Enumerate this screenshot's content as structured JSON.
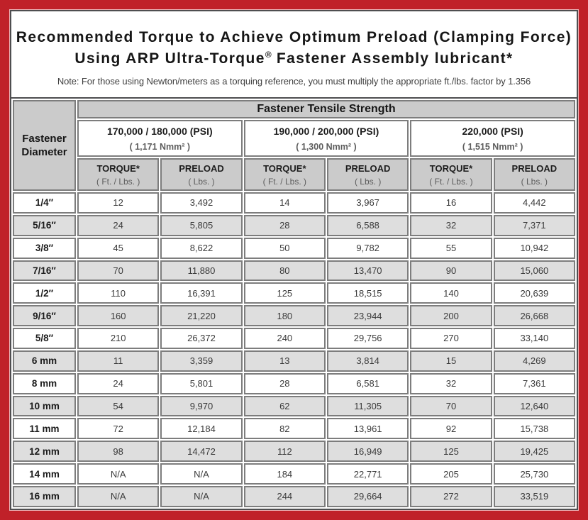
{
  "title": {
    "line1": "Recommended Torque to Achieve Optimum Preload (Clamping Force)",
    "line2_prefix": "Using ARP Ultra-Torque",
    "registered_mark": "®",
    "line2_suffix": " Fastener Assembly lubricant*"
  },
  "note": "Note: For those using Newton/meters as a torquing reference, you must multiply the appropriate ft./lbs. factor by 1.356",
  "colors": {
    "frame_red": "#c02129",
    "header_gray": "#cbcbcb",
    "row_alt_gray": "#dedede",
    "cell_border_gray": "#7d7d7d"
  },
  "table": {
    "corner_header": "Fastener Diameter",
    "strength_header": "Fastener Tensile Strength",
    "groups": [
      {
        "psi": "170,000 / 180,000 (PSI)",
        "nmm": "( 1,171 Nmm² )",
        "columns": [
          {
            "label": "TORQUE*",
            "unit": "( Ft. / Lbs. )"
          },
          {
            "label": "PRELOAD",
            "unit": "( Lbs. )"
          }
        ]
      },
      {
        "psi": "190,000 / 200,000 (PSI)",
        "nmm": "( 1,300 Nmm² )",
        "columns": [
          {
            "label": "TORQUE*",
            "unit": "( Ft. / Lbs. )"
          },
          {
            "label": "PRELOAD",
            "unit": "( Lbs. )"
          }
        ]
      },
      {
        "psi": "220,000 (PSI)",
        "nmm": "( 1,515 Nmm² )",
        "columns": [
          {
            "label": "TORQUE*",
            "unit": "( Ft. / Lbs. )"
          },
          {
            "label": "PRELOAD",
            "unit": "( Lbs. )"
          }
        ]
      }
    ],
    "rows": [
      {
        "diameter": "1/4″",
        "values": [
          "12",
          "3,492",
          "14",
          "3,967",
          "16",
          "4,442"
        ]
      },
      {
        "diameter": "5/16″",
        "values": [
          "24",
          "5,805",
          "28",
          "6,588",
          "32",
          "7,371"
        ]
      },
      {
        "diameter": "3/8″",
        "values": [
          "45",
          "8,622",
          "50",
          "9,782",
          "55",
          "10,942"
        ]
      },
      {
        "diameter": "7/16″",
        "values": [
          "70",
          "11,880",
          "80",
          "13,470",
          "90",
          "15,060"
        ]
      },
      {
        "diameter": "1/2″",
        "values": [
          "110",
          "16,391",
          "125",
          "18,515",
          "140",
          "20,639"
        ]
      },
      {
        "diameter": "9/16″",
        "values": [
          "160",
          "21,220",
          "180",
          "23,944",
          "200",
          "26,668"
        ]
      },
      {
        "diameter": "5/8″",
        "values": [
          "210",
          "26,372",
          "240",
          "29,756",
          "270",
          "33,140"
        ]
      },
      {
        "diameter": "6 mm",
        "values": [
          "11",
          "3,359",
          "13",
          "3,814",
          "15",
          "4,269"
        ]
      },
      {
        "diameter": "8 mm",
        "values": [
          "24",
          "5,801",
          "28",
          "6,581",
          "32",
          "7,361"
        ]
      },
      {
        "diameter": "10 mm",
        "values": [
          "54",
          "9,970",
          "62",
          "11,305",
          "70",
          "12,640"
        ]
      },
      {
        "diameter": "11 mm",
        "values": [
          "72",
          "12,184",
          "82",
          "13,961",
          "92",
          "15,738"
        ]
      },
      {
        "diameter": "12 mm",
        "values": [
          "98",
          "14,472",
          "112",
          "16,949",
          "125",
          "19,425"
        ]
      },
      {
        "diameter": "14 mm",
        "values": [
          "N/A",
          "N/A",
          "184",
          "22,771",
          "205",
          "25,730"
        ]
      },
      {
        "diameter": "16 mm",
        "values": [
          "N/A",
          "N/A",
          "244",
          "29,664",
          "272",
          "33,519"
        ]
      }
    ]
  }
}
